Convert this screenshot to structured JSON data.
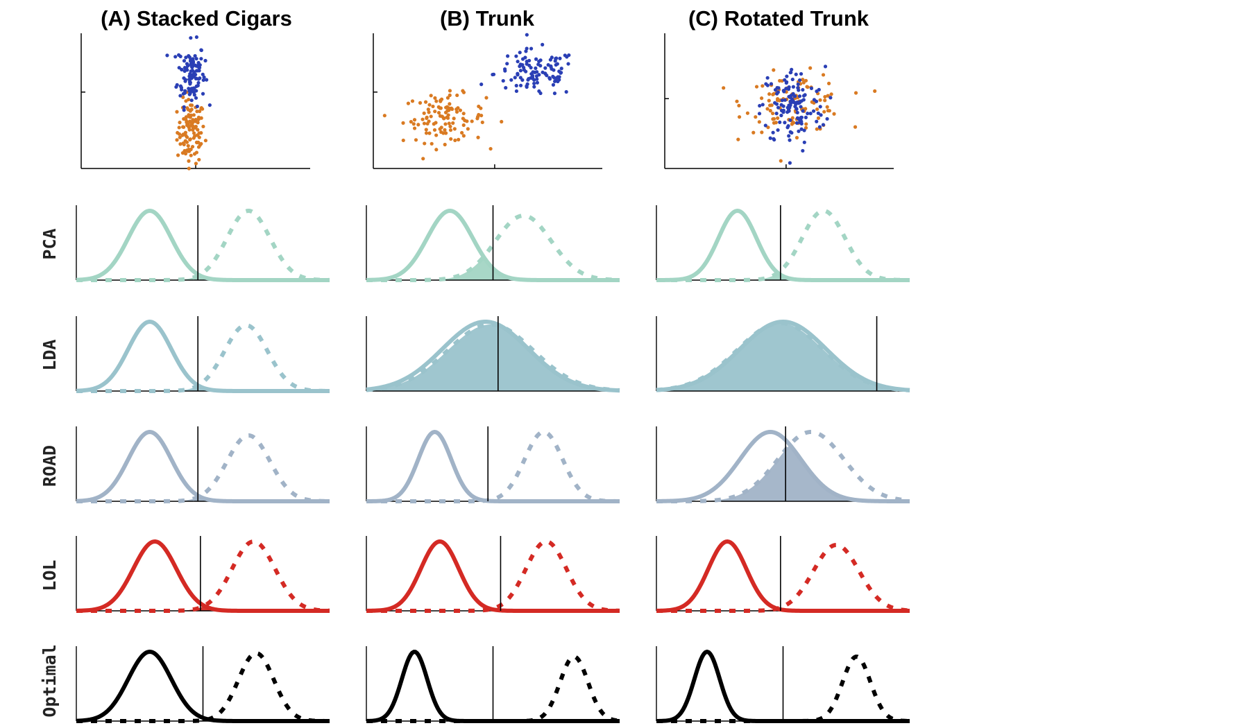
{
  "figure": {
    "column_titles": [
      "(A) Stacked Cigars",
      "(B) Trunk",
      "(C) Rotated Trunk"
    ],
    "row_labels": [
      "PCA",
      "LDA",
      "ROAD",
      "LOL",
      "Optimal"
    ],
    "colors": {
      "class_blue": "#2a3fb5",
      "class_orange": "#d97a22",
      "PCA": "#a3d5c4",
      "LDA": "#9ac3cc",
      "ROAD": "#a1b3c7",
      "LOL": "#d42a24",
      "Optimal": "#000000"
    }
  },
  "chart_data": [
    {
      "type": "scatter",
      "title": "(A) Stacked Cigars",
      "series": [
        {
          "class": "blue",
          "color": "#2a3fb5",
          "center": [
            0.48,
            0.72
          ],
          "spread": [
            0.03,
            0.12
          ],
          "n": 110
        },
        {
          "class": "orange",
          "color": "#d97a22",
          "center": [
            0.48,
            0.28
          ],
          "spread": [
            0.03,
            0.12
          ],
          "n": 110
        }
      ]
    },
    {
      "type": "scatter",
      "title": "(B) Trunk",
      "series": [
        {
          "class": "blue",
          "color": "#2a3fb5",
          "center": [
            0.71,
            0.72
          ],
          "spread": [
            0.09,
            0.09
          ],
          "n": 110
        },
        {
          "class": "orange",
          "color": "#d97a22",
          "center": [
            0.31,
            0.38
          ],
          "spread": [
            0.09,
            0.09
          ],
          "n": 110
        }
      ]
    },
    {
      "type": "scatter",
      "title": "(C) Rotated Trunk",
      "series": [
        {
          "class": "blue",
          "color": "#2a3fb5",
          "center": [
            0.56,
            0.47
          ],
          "spread": [
            0.07,
            0.15
          ],
          "n": 130
        },
        {
          "class": "orange",
          "color": "#d97a22",
          "center": [
            0.57,
            0.5
          ],
          "spread": [
            0.11,
            0.11
          ],
          "n": 110
        }
      ]
    },
    {
      "type": "line",
      "method": "PCA",
      "column": "A",
      "threshold": 0.48,
      "series": [
        {
          "style": "solid",
          "mean": 0.29,
          "sd": 0.085,
          "amp": 1.0
        },
        {
          "style": "dotted",
          "mean": 0.68,
          "sd": 0.085,
          "amp": 1.0
        }
      ]
    },
    {
      "type": "line",
      "method": "PCA",
      "column": "B",
      "threshold": 0.5,
      "series": [
        {
          "style": "solid",
          "mean": 0.33,
          "sd": 0.09,
          "amp": 1.0
        },
        {
          "style": "dotted",
          "mean": 0.62,
          "sd": 0.11,
          "amp": 0.93
        }
      ]
    },
    {
      "type": "line",
      "method": "PCA",
      "column": "C",
      "threshold": 0.49,
      "series": [
        {
          "style": "solid",
          "mean": 0.32,
          "sd": 0.075,
          "amp": 1.0
        },
        {
          "style": "dotted",
          "mean": 0.66,
          "sd": 0.085,
          "amp": 1.0
        }
      ]
    },
    {
      "type": "line",
      "method": "LDA",
      "column": "A",
      "threshold": 0.48,
      "series": [
        {
          "style": "solid",
          "mean": 0.29,
          "sd": 0.085,
          "amp": 1.0
        },
        {
          "style": "dotted",
          "mean": 0.67,
          "sd": 0.085,
          "amp": 0.95
        }
      ]
    },
    {
      "type": "line",
      "method": "LDA",
      "column": "B",
      "threshold": 0.52,
      "series": [
        {
          "style": "solid",
          "mean": 0.47,
          "sd": 0.17,
          "amp": 1.0
        },
        {
          "style": "dotted",
          "mean": 0.49,
          "sd": 0.17,
          "amp": 0.96
        }
      ]
    },
    {
      "type": "line",
      "method": "LDA",
      "column": "C",
      "threshold": 0.87,
      "series": [
        {
          "style": "solid",
          "mean": 0.5,
          "sd": 0.17,
          "amp": 1.0
        },
        {
          "style": "dotted",
          "mean": 0.49,
          "sd": 0.17,
          "amp": 0.98
        }
      ]
    },
    {
      "type": "line",
      "method": "ROAD",
      "column": "A",
      "threshold": 0.48,
      "series": [
        {
          "style": "solid",
          "mean": 0.29,
          "sd": 0.085,
          "amp": 1.0
        },
        {
          "style": "dotted",
          "mean": 0.68,
          "sd": 0.085,
          "amp": 0.95
        }
      ]
    },
    {
      "type": "line",
      "method": "ROAD",
      "column": "B",
      "threshold": 0.48,
      "series": [
        {
          "style": "solid",
          "mean": 0.27,
          "sd": 0.065,
          "amp": 1.0
        },
        {
          "style": "dotted",
          "mean": 0.7,
          "sd": 0.075,
          "amp": 1.0
        }
      ]
    },
    {
      "type": "line",
      "method": "ROAD",
      "column": "C",
      "threshold": 0.51,
      "series": [
        {
          "style": "solid",
          "mean": 0.45,
          "sd": 0.12,
          "amp": 1.0
        },
        {
          "style": "dotted",
          "mean": 0.61,
          "sd": 0.13,
          "amp": 1.0
        }
      ]
    },
    {
      "type": "line",
      "method": "LOL",
      "column": "A",
      "threshold": 0.49,
      "series": [
        {
          "style": "solid",
          "mean": 0.31,
          "sd": 0.085,
          "amp": 1.0
        },
        {
          "style": "dotted",
          "mean": 0.7,
          "sd": 0.085,
          "amp": 1.0
        }
      ]
    },
    {
      "type": "line",
      "method": "LOL",
      "column": "B",
      "threshold": 0.53,
      "series": [
        {
          "style": "solid",
          "mean": 0.29,
          "sd": 0.075,
          "amp": 1.0
        },
        {
          "style": "dotted",
          "mean": 0.71,
          "sd": 0.08,
          "amp": 1.0
        }
      ]
    },
    {
      "type": "line",
      "method": "LOL",
      "column": "C",
      "threshold": 0.49,
      "series": [
        {
          "style": "solid",
          "mean": 0.28,
          "sd": 0.075,
          "amp": 1.0
        },
        {
          "style": "dotted",
          "mean": 0.71,
          "sd": 0.09,
          "amp": 0.95
        }
      ]
    },
    {
      "type": "line",
      "method": "Optimal",
      "column": "A",
      "threshold": 0.5,
      "series": [
        {
          "style": "solid",
          "mean": 0.29,
          "sd": 0.085,
          "amp": 1.0
        },
        {
          "style": "dotted",
          "mean": 0.71,
          "sd": 0.07,
          "amp": 0.98
        }
      ]
    },
    {
      "type": "line",
      "method": "Optimal",
      "column": "B",
      "threshold": 0.5,
      "series": [
        {
          "style": "solid",
          "mean": 0.19,
          "sd": 0.05,
          "amp": 1.0
        },
        {
          "style": "dotted",
          "mean": 0.82,
          "sd": 0.055,
          "amp": 0.93
        }
      ]
    },
    {
      "type": "line",
      "method": "Optimal",
      "column": "C",
      "threshold": 0.5,
      "series": [
        {
          "style": "solid",
          "mean": 0.2,
          "sd": 0.05,
          "amp": 1.0
        },
        {
          "style": "dotted",
          "mean": 0.79,
          "sd": 0.055,
          "amp": 0.93
        }
      ]
    }
  ]
}
